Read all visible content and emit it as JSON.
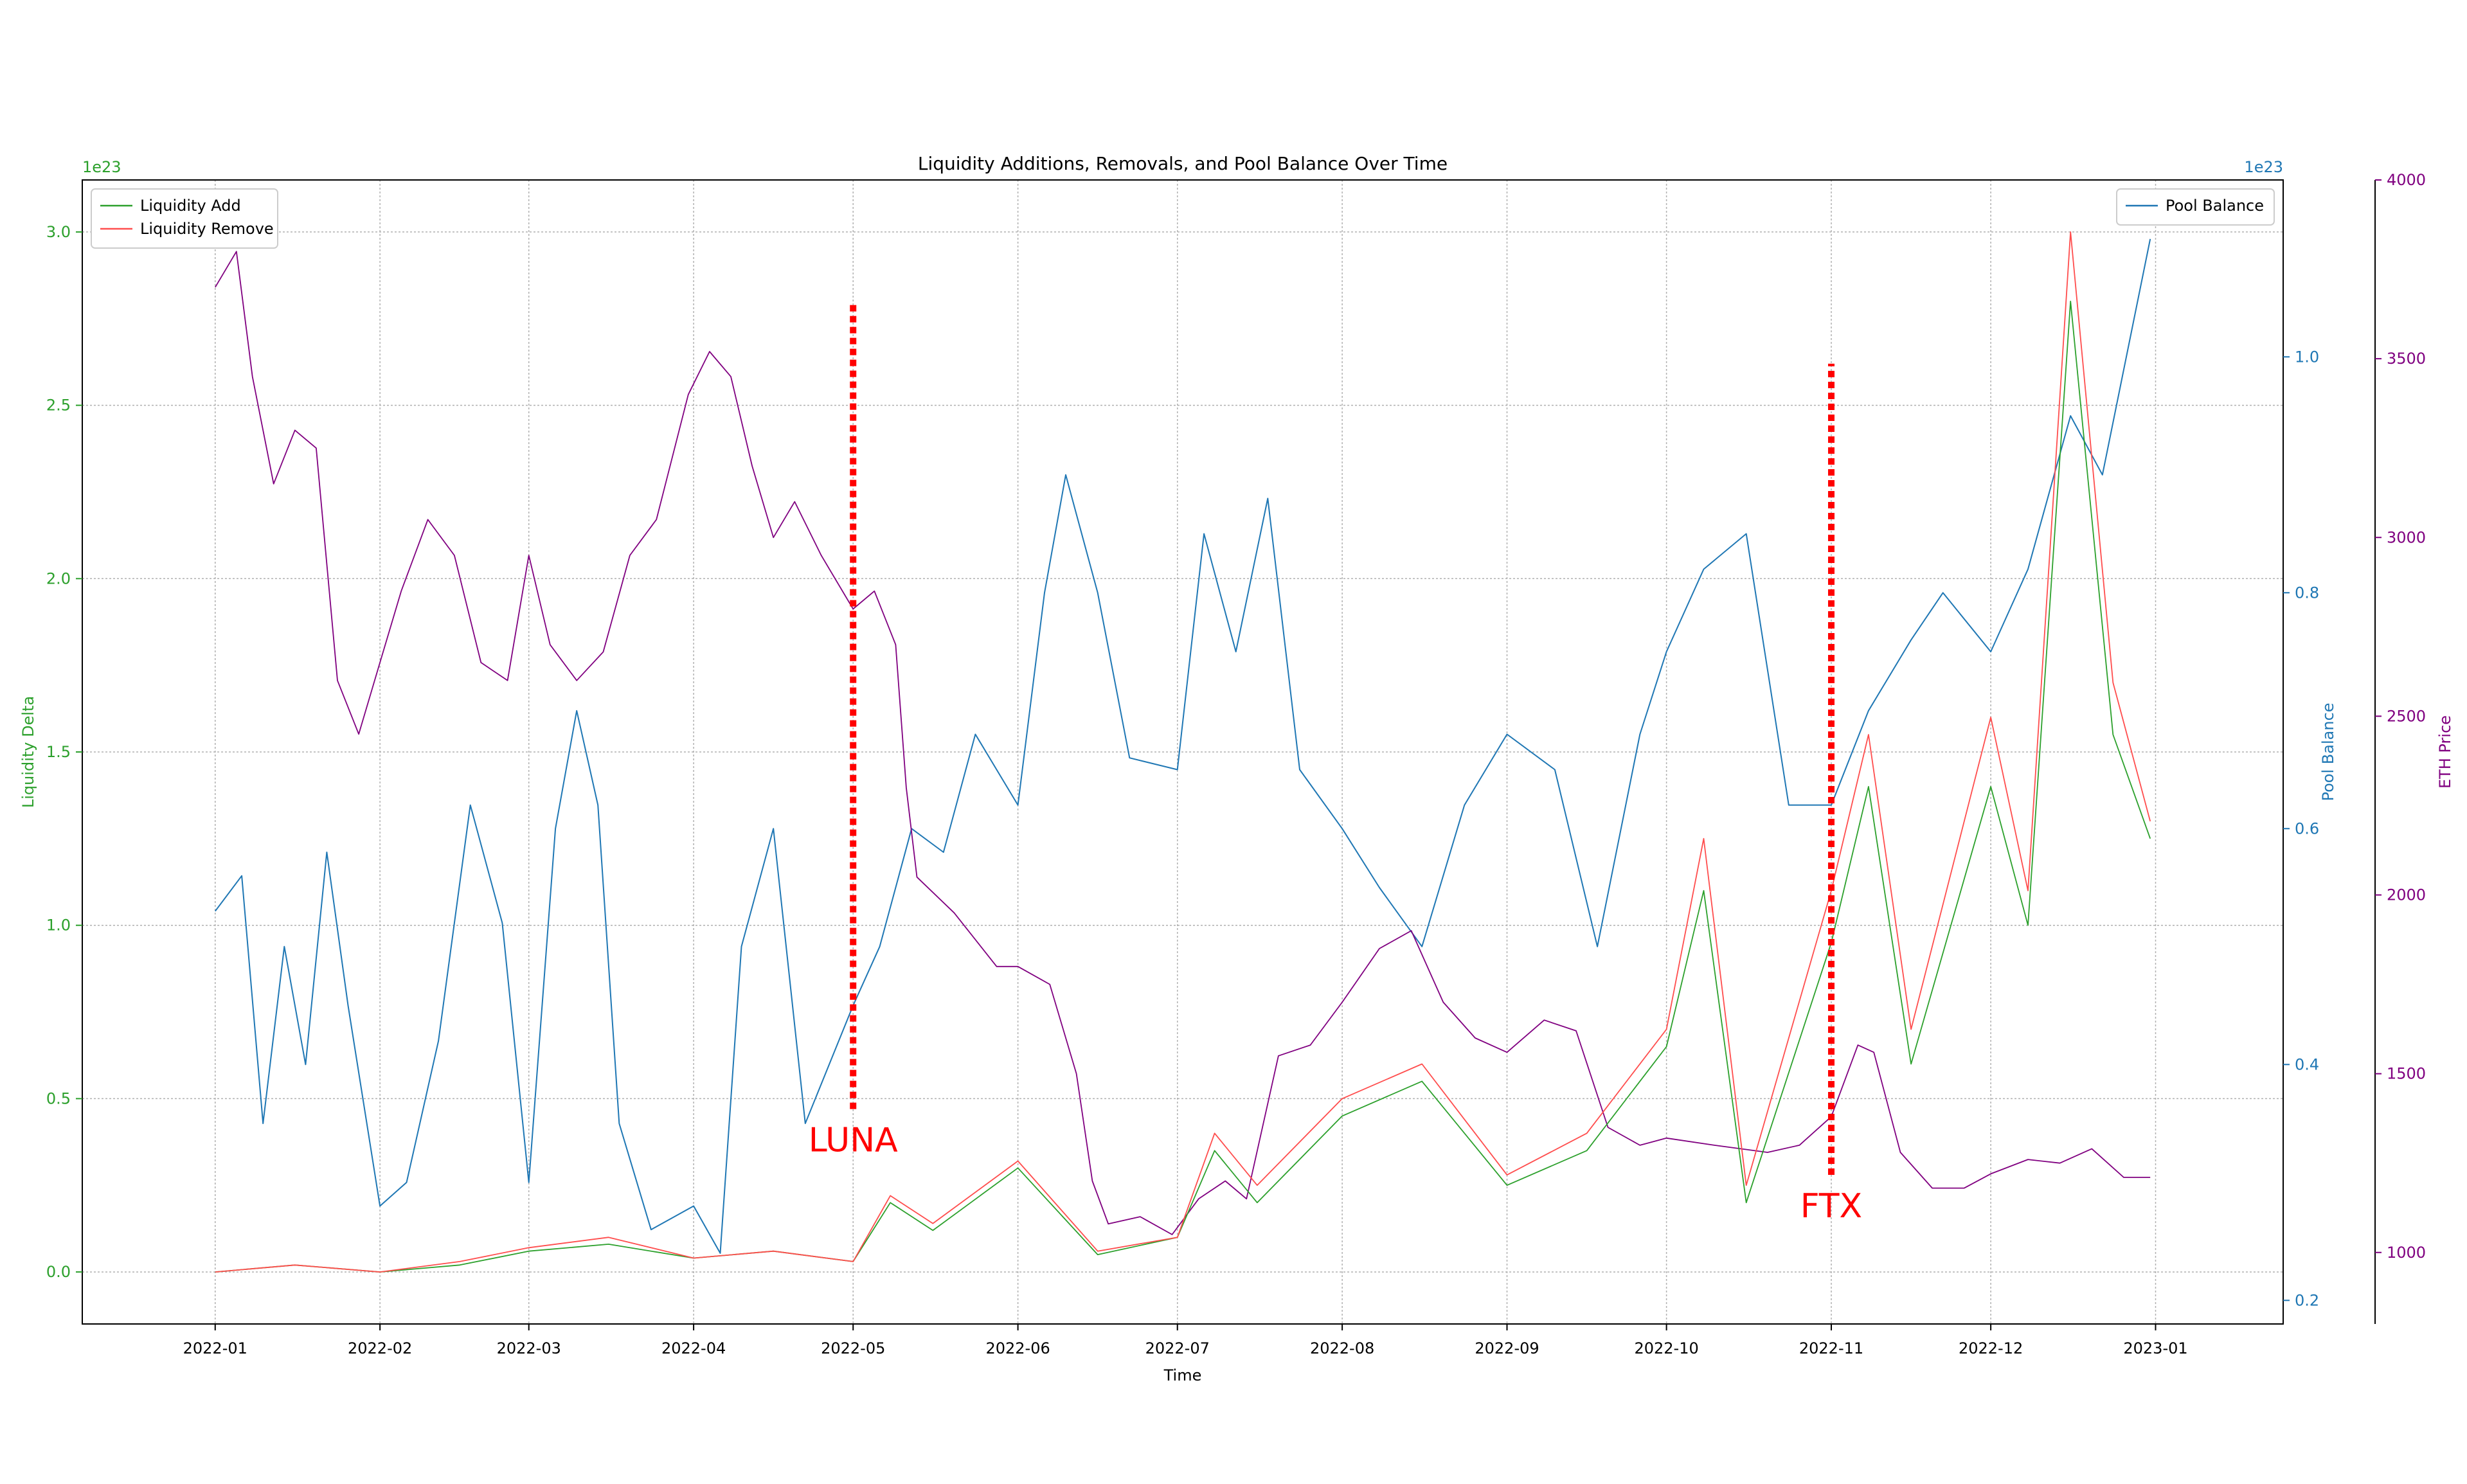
{
  "chart_data": {
    "type": "line",
    "title": "Liquidity Additions, Removals, and Pool Balance Over Time",
    "xlabel": "Time",
    "x_ticks": [
      "2022-01",
      "2022-02",
      "2022-03",
      "2022-04",
      "2022-05",
      "2022-06",
      "2022-07",
      "2022-08",
      "2022-09",
      "2022-10",
      "2022-11",
      "2022-12",
      "2023-01"
    ],
    "grid": true,
    "axes": {
      "left": {
        "label": "Liquidity Delta",
        "offset_text": "1e23",
        "color": "#2ca02c",
        "ylim": [
          -0.15,
          3.15
        ],
        "ticks": [
          "0.0",
          "0.5",
          "1.0",
          "1.5",
          "2.0",
          "2.5",
          "3.0"
        ]
      },
      "right": {
        "label": "Pool Balance",
        "offset_text": "1e23",
        "color": "#1f77b4",
        "ylim": [
          0.18,
          1.15
        ],
        "ticks": [
          "0.2",
          "0.4",
          "0.6",
          "0.8",
          "1.0"
        ]
      },
      "right2": {
        "label": "ETH Price",
        "color": "#800080",
        "ylim": [
          800,
          4000
        ],
        "ticks": [
          "1000",
          "1500",
          "2000",
          "2500",
          "3000",
          "3500",
          "4000"
        ]
      }
    },
    "legends": {
      "left": {
        "position": "upper-left",
        "entries": [
          {
            "name": "Liquidity Add",
            "color": "#2ca02c"
          },
          {
            "name": "Liquidity Remove",
            "color": "#ff4d4d"
          }
        ]
      },
      "right": {
        "position": "upper-right",
        "entries": [
          {
            "name": "Pool Balance",
            "color": "#1f77b4"
          }
        ]
      }
    },
    "annotations": [
      {
        "text": "LUNA",
        "date": "2022-05-01",
        "line_from_liquidity": 0.47,
        "line_to_liquidity": 2.8,
        "color": "#ff0000"
      },
      {
        "text": "FTX",
        "date": "2022-11-01",
        "line_from_liquidity": 0.28,
        "line_to_liquidity": 2.62,
        "color": "#ff0000"
      }
    ],
    "series": [
      {
        "name": "Liquidity Add",
        "axis": "left",
        "color": "#2ca02c",
        "x": [
          "2022-01-01",
          "2022-01-16",
          "2022-02-01",
          "2022-02-16",
          "2022-03-01",
          "2022-03-16",
          "2022-04-01",
          "2022-04-16",
          "2022-05-01",
          "2022-05-08",
          "2022-05-16",
          "2022-06-01",
          "2022-06-16",
          "2022-07-01",
          "2022-07-08",
          "2022-07-16",
          "2022-08-01",
          "2022-08-16",
          "2022-09-01",
          "2022-09-16",
          "2022-10-01",
          "2022-10-08",
          "2022-10-16",
          "2022-11-01",
          "2022-11-08",
          "2022-11-16",
          "2022-12-01",
          "2022-12-08",
          "2022-12-16",
          "2022-12-24",
          "2022-12-31"
        ],
        "values": [
          0.0,
          0.02,
          0.0,
          0.02,
          0.06,
          0.08,
          0.04,
          0.06,
          0.03,
          0.2,
          0.12,
          0.3,
          0.05,
          0.1,
          0.35,
          0.2,
          0.45,
          0.55,
          0.25,
          0.35,
          0.65,
          1.1,
          0.2,
          0.95,
          1.4,
          0.6,
          1.4,
          1.0,
          2.8,
          1.55,
          1.25
        ]
      },
      {
        "name": "Liquidity Remove",
        "axis": "left",
        "color": "#ff4d4d",
        "x": [
          "2022-01-01",
          "2022-01-16",
          "2022-02-01",
          "2022-02-16",
          "2022-03-01",
          "2022-03-16",
          "2022-04-01",
          "2022-04-16",
          "2022-05-01",
          "2022-05-08",
          "2022-05-16",
          "2022-06-01",
          "2022-06-16",
          "2022-07-01",
          "2022-07-08",
          "2022-07-16",
          "2022-08-01",
          "2022-08-16",
          "2022-09-01",
          "2022-09-16",
          "2022-10-01",
          "2022-10-08",
          "2022-10-16",
          "2022-11-01",
          "2022-11-08",
          "2022-11-16",
          "2022-12-01",
          "2022-12-08",
          "2022-12-16",
          "2022-12-24",
          "2022-12-31"
        ],
        "values": [
          0.0,
          0.02,
          0.0,
          0.03,
          0.07,
          0.1,
          0.04,
          0.06,
          0.03,
          0.22,
          0.14,
          0.32,
          0.06,
          0.1,
          0.4,
          0.25,
          0.5,
          0.6,
          0.28,
          0.4,
          0.7,
          1.25,
          0.25,
          1.1,
          1.55,
          0.7,
          1.6,
          1.1,
          3.0,
          1.7,
          1.3
        ]
      },
      {
        "name": "Pool Balance",
        "axis": "right",
        "color": "#1f77b4",
        "x": [
          "2022-01-01",
          "2022-01-06",
          "2022-01-10",
          "2022-01-14",
          "2022-01-18",
          "2022-01-22",
          "2022-01-26",
          "2022-02-01",
          "2022-02-06",
          "2022-02-12",
          "2022-02-18",
          "2022-02-24",
          "2022-03-01",
          "2022-03-06",
          "2022-03-10",
          "2022-03-14",
          "2022-03-18",
          "2022-03-24",
          "2022-04-01",
          "2022-04-06",
          "2022-04-10",
          "2022-04-16",
          "2022-04-22",
          "2022-05-01",
          "2022-05-06",
          "2022-05-12",
          "2022-05-18",
          "2022-05-24",
          "2022-06-01",
          "2022-06-06",
          "2022-06-10",
          "2022-06-16",
          "2022-06-22",
          "2022-07-01",
          "2022-07-06",
          "2022-07-12",
          "2022-07-18",
          "2022-07-24",
          "2022-08-01",
          "2022-08-08",
          "2022-08-16",
          "2022-08-24",
          "2022-09-01",
          "2022-09-10",
          "2022-09-18",
          "2022-09-26",
          "2022-10-01",
          "2022-10-08",
          "2022-10-16",
          "2022-10-24",
          "2022-11-01",
          "2022-11-08",
          "2022-11-16",
          "2022-11-22",
          "2022-12-01",
          "2022-12-08",
          "2022-12-16",
          "2022-12-22",
          "2022-12-31"
        ],
        "values": [
          0.53,
          0.56,
          0.35,
          0.5,
          0.4,
          0.58,
          0.45,
          0.28,
          0.3,
          0.42,
          0.62,
          0.52,
          0.3,
          0.6,
          0.7,
          0.62,
          0.35,
          0.26,
          0.28,
          0.24,
          0.5,
          0.6,
          0.35,
          0.45,
          0.5,
          0.6,
          0.58,
          0.68,
          0.62,
          0.8,
          0.9,
          0.8,
          0.66,
          0.65,
          0.85,
          0.75,
          0.88,
          0.65,
          0.6,
          0.55,
          0.5,
          0.62,
          0.68,
          0.65,
          0.5,
          0.68,
          0.75,
          0.82,
          0.85,
          0.62,
          0.62,
          0.7,
          0.76,
          0.8,
          0.75,
          0.82,
          0.95,
          0.9,
          1.1
        ]
      },
      {
        "name": "ETH Price",
        "axis": "right2",
        "color": "#800080",
        "x": [
          "2022-01-01",
          "2022-01-05",
          "2022-01-08",
          "2022-01-12",
          "2022-01-16",
          "2022-01-20",
          "2022-01-24",
          "2022-01-28",
          "2022-02-01",
          "2022-02-05",
          "2022-02-10",
          "2022-02-15",
          "2022-02-20",
          "2022-02-25",
          "2022-03-01",
          "2022-03-05",
          "2022-03-10",
          "2022-03-15",
          "2022-03-20",
          "2022-03-25",
          "2022-03-31",
          "2022-04-04",
          "2022-04-08",
          "2022-04-12",
          "2022-04-16",
          "2022-04-20",
          "2022-04-25",
          "2022-05-01",
          "2022-05-05",
          "2022-05-09",
          "2022-05-11",
          "2022-05-13",
          "2022-05-20",
          "2022-05-28",
          "2022-06-01",
          "2022-06-07",
          "2022-06-12",
          "2022-06-15",
          "2022-06-18",
          "2022-06-24",
          "2022-06-30",
          "2022-07-05",
          "2022-07-10",
          "2022-07-14",
          "2022-07-20",
          "2022-07-26",
          "2022-08-01",
          "2022-08-08",
          "2022-08-14",
          "2022-08-20",
          "2022-08-26",
          "2022-09-01",
          "2022-09-08",
          "2022-09-14",
          "2022-09-20",
          "2022-09-26",
          "2022-10-01",
          "2022-10-10",
          "2022-10-20",
          "2022-10-26",
          "2022-11-01",
          "2022-11-06",
          "2022-11-09",
          "2022-11-14",
          "2022-11-20",
          "2022-11-26",
          "2022-12-01",
          "2022-12-08",
          "2022-12-14",
          "2022-12-20",
          "2022-12-26",
          "2022-12-31"
        ],
        "values": [
          3700,
          3800,
          3450,
          3150,
          3300,
          3250,
          2600,
          2450,
          2650,
          2850,
          3050,
          2950,
          2650,
          2600,
          2950,
          2700,
          2600,
          2680,
          2950,
          3050,
          3400,
          3520,
          3450,
          3200,
          3000,
          3100,
          2950,
          2800,
          2850,
          2700,
          2300,
          2050,
          1950,
          1800,
          1800,
          1750,
          1500,
          1200,
          1080,
          1100,
          1050,
          1150,
          1200,
          1150,
          1550,
          1580,
          1700,
          1850,
          1900,
          1700,
          1600,
          1560,
          1650,
          1620,
          1350,
          1300,
          1320,
          1300,
          1280,
          1300,
          1380,
          1580,
          1560,
          1280,
          1180,
          1180,
          1220,
          1260,
          1250,
          1290,
          1210,
          1210
        ]
      }
    ]
  }
}
